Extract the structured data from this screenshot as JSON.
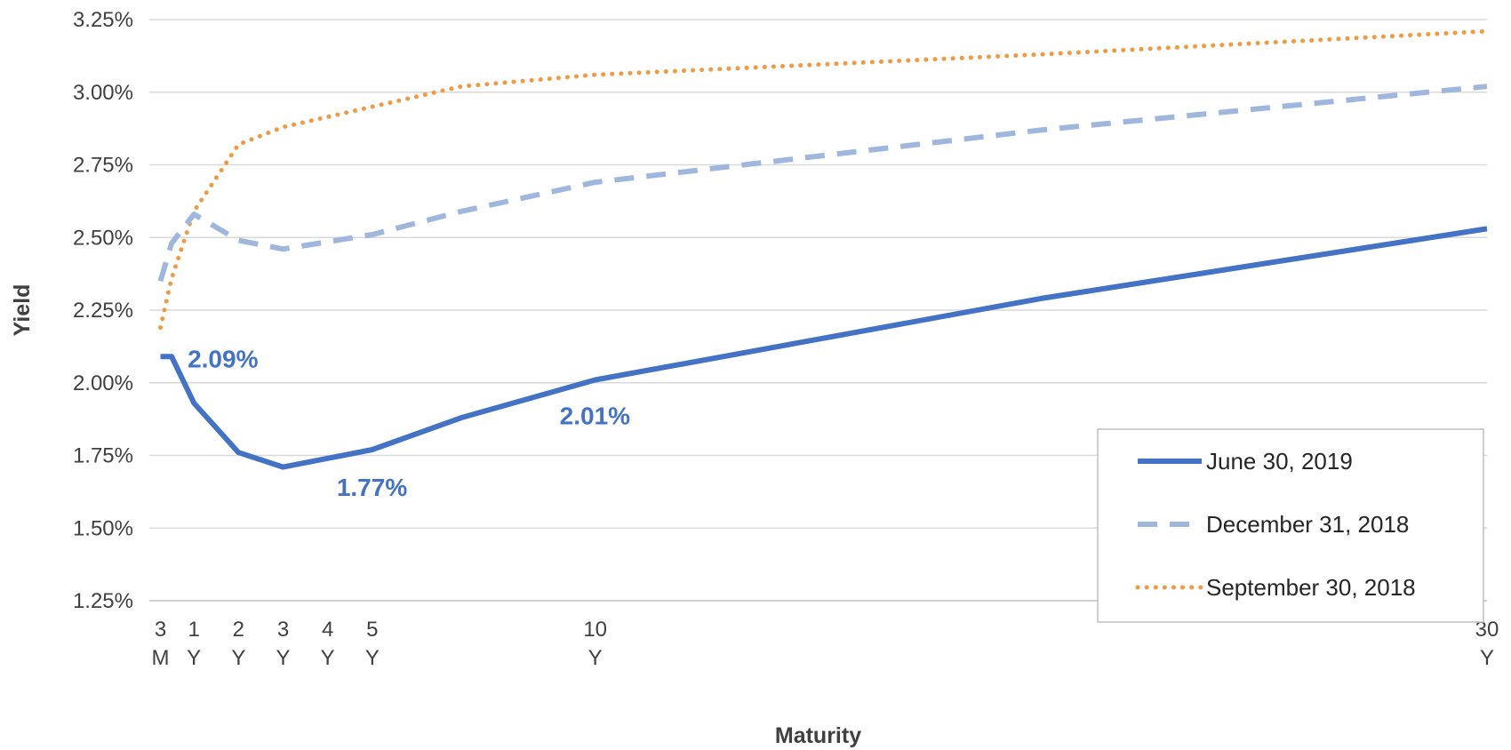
{
  "chart_data": {
    "type": "line",
    "xlabel": "Maturity",
    "ylabel": "Yield",
    "x": [
      0.25,
      0.5,
      1,
      2,
      3,
      5,
      7,
      10,
      20,
      30
    ],
    "x_ticks": [
      {
        "value": 0.25,
        "line1": "3",
        "line2": "M"
      },
      {
        "value": 1,
        "line1": "1",
        "line2": "Y"
      },
      {
        "value": 2,
        "line1": "2",
        "line2": "Y"
      },
      {
        "value": 3,
        "line1": "3",
        "line2": "Y"
      },
      {
        "value": 4,
        "line1": "4",
        "line2": "Y"
      },
      {
        "value": 5,
        "line1": "5",
        "line2": "Y"
      },
      {
        "value": 10,
        "line1": "10",
        "line2": "Y"
      },
      {
        "value": 30,
        "line1": "30",
        "line2": "Y"
      }
    ],
    "xlim": [
      0,
      30
    ],
    "ylim": [
      1.25,
      3.25
    ],
    "y_ticks": [
      {
        "value": 1.25,
        "label": "1.25%"
      },
      {
        "value": 1.5,
        "label": "1.50%"
      },
      {
        "value": 1.75,
        "label": "1.75%"
      },
      {
        "value": 2.0,
        "label": "2.00%"
      },
      {
        "value": 2.25,
        "label": "2.25%"
      },
      {
        "value": 2.5,
        "label": "2.50%"
      },
      {
        "value": 2.75,
        "label": "2.75%"
      },
      {
        "value": 3.0,
        "label": "3.00%"
      },
      {
        "value": 3.25,
        "label": "3.25%"
      }
    ],
    "grid": true,
    "legend_position": "bottom-right",
    "series": [
      {
        "name": "June 30, 2019",
        "color": "#4472C4",
        "style": "solid",
        "values": [
          2.09,
          2.09,
          1.93,
          1.76,
          1.71,
          1.77,
          1.88,
          2.01,
          2.29,
          2.53
        ]
      },
      {
        "name": "December 31, 2018",
        "color": "#9FB7DD",
        "style": "dashed",
        "values": [
          2.35,
          2.48,
          2.58,
          2.49,
          2.46,
          2.51,
          2.59,
          2.69,
          2.87,
          3.02
        ]
      },
      {
        "name": "September 30, 2018",
        "color": "#ED9B45",
        "style": "dotted",
        "values": [
          2.19,
          2.36,
          2.59,
          2.82,
          2.88,
          2.95,
          3.02,
          3.06,
          3.13,
          3.21
        ]
      }
    ],
    "annotations": [
      {
        "text": "2.09%",
        "x": 0.5,
        "y": 2.09,
        "color": "#4472C4"
      },
      {
        "text": "1.77%",
        "x": 5,
        "y": 1.77,
        "color": "#4472C4"
      },
      {
        "text": "2.01%",
        "x": 10,
        "y": 2.01,
        "color": "#4472C4"
      }
    ]
  }
}
